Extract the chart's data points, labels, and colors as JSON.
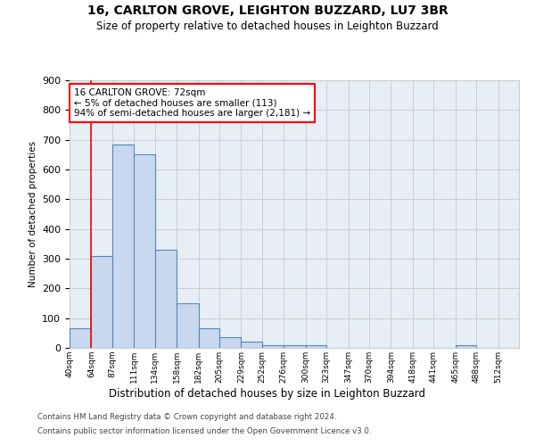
{
  "title1": "16, CARLTON GROVE, LEIGHTON BUZZARD, LU7 3BR",
  "title2": "Size of property relative to detached houses in Leighton Buzzard",
  "xlabel": "Distribution of detached houses by size in Leighton Buzzard",
  "ylabel": "Number of detached properties",
  "footer1": "Contains HM Land Registry data © Crown copyright and database right 2024.",
  "footer2": "Contains public sector information licensed under the Open Government Licence v3.0.",
  "bar_labels": [
    "40sqm",
    "64sqm",
    "87sqm",
    "111sqm",
    "134sqm",
    "158sqm",
    "182sqm",
    "205sqm",
    "229sqm",
    "252sqm",
    "276sqm",
    "300sqm",
    "323sqm",
    "347sqm",
    "370sqm",
    "394sqm",
    "418sqm",
    "441sqm",
    "465sqm",
    "488sqm",
    "512sqm"
  ],
  "bar_values": [
    65,
    310,
    685,
    650,
    330,
    150,
    65,
    35,
    20,
    10,
    10,
    10,
    0,
    0,
    0,
    0,
    0,
    0,
    10,
    0,
    0
  ],
  "bar_color": "#c8d8ee",
  "bar_edge_color": "#5588bb",
  "annotation_line1": "16 CARLTON GROVE: 72sqm",
  "annotation_line2": "← 5% of detached houses are smaller (113)",
  "annotation_line3": "94% of semi-detached houses are larger (2,181) →",
  "annotation_box_facecolor": "white",
  "annotation_box_edgecolor": "red",
  "property_line_x": 1,
  "ylim_max": 900,
  "ytick_max": 900,
  "ytick_step": 100,
  "bin_edges": [
    40,
    64,
    87,
    111,
    134,
    158,
    182,
    205,
    229,
    252,
    276,
    300,
    323,
    347,
    370,
    394,
    418,
    441,
    465,
    488,
    512,
    535
  ],
  "grid_color": "#cccccc",
  "bg_color": "#e8eef5"
}
